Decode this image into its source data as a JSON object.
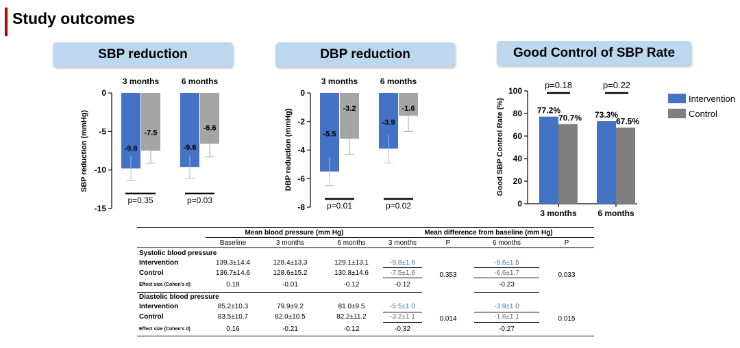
{
  "page_title": "Study outcomes",
  "colors": {
    "intervention": "#4472c4",
    "control": "#a5a5a5",
    "control_dark": "#7f7f7f",
    "panel_title_bg": "#bdd7ee",
    "accent_bar": "#c00000",
    "table_blue": "#2e75b6"
  },
  "legend": {
    "items": [
      "Intervention",
      "Control"
    ]
  },
  "chart_data": [
    {
      "type": "bar",
      "title": "SBP reduction",
      "ylabel": "SBP reduction (mmHg)",
      "ylim": [
        -15,
        0
      ],
      "yticks": [
        "0",
        "-5",
        "-10",
        "-15"
      ],
      "categories": [
        "3 months",
        "6 months"
      ],
      "series": [
        {
          "values": [
            -9.8,
            -9.6
          ],
          "value_labels": [
            "-9.8",
            "-9.6"
          ],
          "errors": [
            1.6,
            1.5
          ]
        },
        {
          "values": [
            -7.5,
            -6.6
          ],
          "value_labels": [
            "-7.5",
            "-6.6"
          ],
          "errors": [
            1.6,
            1.7
          ]
        }
      ],
      "p_values": [
        "p=0.35",
        "p=0.03"
      ]
    },
    {
      "type": "bar",
      "title": "DBP reduction",
      "ylabel": "DBP reduction (mmHg)",
      "ylim": [
        -8,
        0
      ],
      "yticks": [
        "0",
        "-2",
        "-4",
        "-6",
        "-8"
      ],
      "categories": [
        "3 months",
        "6 months"
      ],
      "series": [
        {
          "values": [
            -5.5,
            -3.9
          ],
          "value_labels": [
            "-5.5",
            "-3.9"
          ],
          "errors": [
            1.0,
            1.0
          ]
        },
        {
          "values": [
            -3.2,
            -1.6
          ],
          "value_labels": [
            "-3.2",
            "-1.6"
          ],
          "errors": [
            1.1,
            1.1
          ]
        }
      ],
      "p_values": [
        "p=0.01",
        "p=0.02"
      ]
    },
    {
      "type": "bar",
      "title": "Good Control of SBP Rate",
      "ylabel": "Good SBP Control Rate (%)",
      "ylim": [
        0,
        100
      ],
      "yticks": [
        "0",
        "20",
        "40",
        "60",
        "80",
        "100"
      ],
      "categories": [
        "3 months",
        "6 months"
      ],
      "series": [
        {
          "name": "Intervention",
          "values": [
            77.2,
            73.3
          ],
          "value_labels": [
            "77.2%",
            "73.3%"
          ]
        },
        {
          "name": "Control",
          "values": [
            70.7,
            67.5
          ],
          "value_labels": [
            "70.7%",
            "67.5%"
          ]
        }
      ],
      "p_values": [
        "p=0.18",
        "p=0.22"
      ]
    },
    {
      "type": "table",
      "headers": {
        "group1": "Mean blood pressure (mm Hg)",
        "group2": "Mean difference from baseline (mm Hg)",
        "baseline": "Baseline",
        "m3": "3 months",
        "m6": "6 months",
        "d3": "3 months",
        "p1": "P",
        "d6": "6 months",
        "p2": "P"
      },
      "sections": [
        {
          "title": "Systolic blood pressure",
          "intervention": {
            "label": "Intervention",
            "baseline": "139.3±14.4",
            "m3": "128.4±13.3",
            "m6": "129.1±13.1",
            "d3": "-9.8±1.6",
            "d6": "-9.6±1.5"
          },
          "control": {
            "label": "Control",
            "baseline": "136.7±14.6",
            "m3": "128.6±15.2",
            "m6": "130.8±14.6",
            "d3": "-7.5±1.6",
            "d6": "-6.6±1.7"
          },
          "effect": {
            "label": "Effect size (Cohen's d)",
            "baseline": "0.18",
            "m3": "-0.01",
            "m6": "-0.12",
            "d3": "-0.12",
            "d6": "-0.23"
          },
          "p1": "0.353",
          "p2": "0.033"
        },
        {
          "title": "Diastolic blood pressure",
          "intervention": {
            "label": "Intervention",
            "baseline": "85.2±10.3",
            "m3": "79.9±9.2",
            "m6": "81.0±9.5",
            "d3": "-5.5±1.0",
            "d6": "-3.9±1.0"
          },
          "control": {
            "label": "Control",
            "baseline": "83.5±10.7",
            "m3": "82.0±10.5",
            "m6": "82.2±11.2",
            "d3": "-3.2±1.1",
            "d6": "-1.6±1.1"
          },
          "effect": {
            "label": "Effect size (Cohen's d)",
            "baseline": "0.16",
            "m3": "-0.21",
            "m6": "-0.12",
            "d3": "-0.32",
            "d6": "-0.27"
          },
          "p1": "0.014",
          "p2": "0.015"
        }
      ]
    }
  ]
}
